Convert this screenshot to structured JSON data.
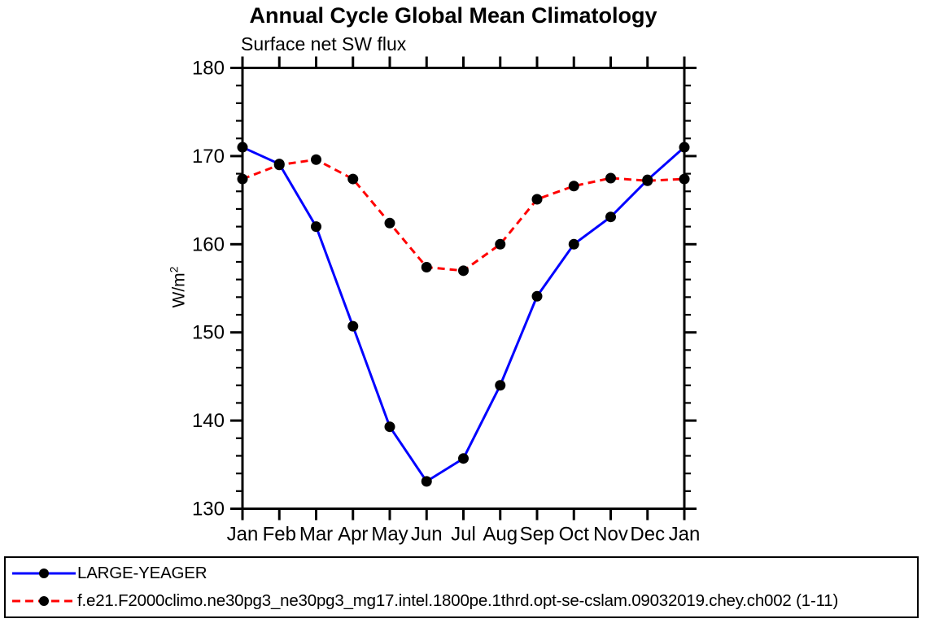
{
  "chart_data": {
    "type": "line",
    "title": "Annual Cycle Global Mean Climatology",
    "subtitle": "Surface net SW flux",
    "ylabel": "W/m",
    "ylabel_exponent": "2",
    "categories": [
      "Jan",
      "Feb",
      "Mar",
      "Apr",
      "May",
      "Jun",
      "Jul",
      "Aug",
      "Sep",
      "Oct",
      "Nov",
      "Dec",
      "Jan"
    ],
    "ylim": [
      130,
      180
    ],
    "yticks": [
      130,
      140,
      150,
      160,
      170,
      180
    ],
    "y_minor_step": 2,
    "grid": false,
    "legend_position": "bottom box, full width",
    "frame": "full box with outward ticks",
    "axis_color": "#000000",
    "marker_color": "#000000",
    "series": [
      {
        "name": "LARGE-YEAGER",
        "color": "#0000ff",
        "style": "solid",
        "marker": "circle",
        "values": [
          171.0,
          169.1,
          162.0,
          150.7,
          139.3,
          133.1,
          135.7,
          144.0,
          154.1,
          160.0,
          163.1,
          167.3,
          171.0
        ]
      },
      {
        "name": "f.e21.F2000climo.ne30pg3_ne30pg3_mg17.intel.1800pe.1thrd.opt-se-cslam.09032019.chey.ch002 (1-11)",
        "color": "#ff0000",
        "style": "dashed",
        "marker": "circle",
        "values": [
          167.4,
          169.0,
          169.6,
          167.4,
          162.4,
          157.4,
          157.0,
          160.0,
          165.1,
          166.6,
          167.5,
          167.2,
          167.4
        ]
      }
    ]
  }
}
